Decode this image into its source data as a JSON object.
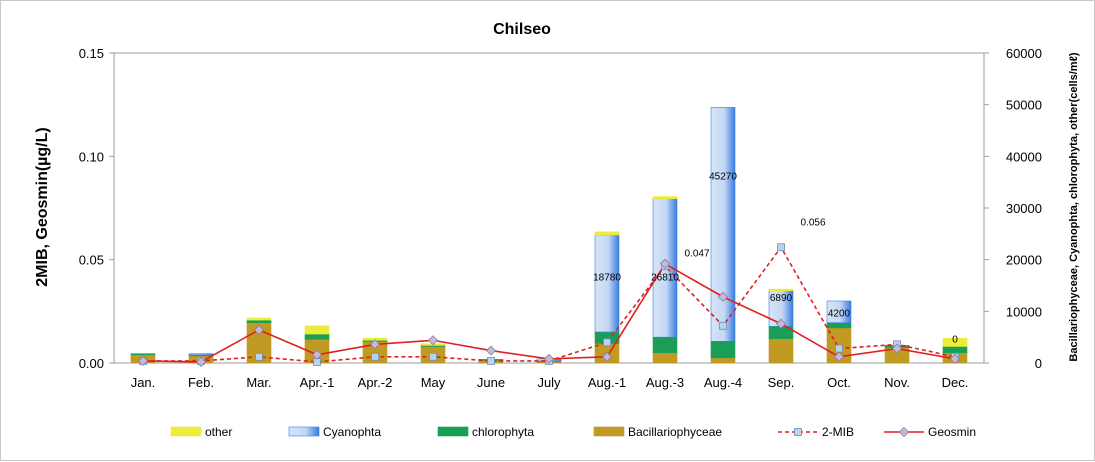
{
  "chart_data": {
    "type": "bar",
    "title": "Chilseo",
    "ylabel": "2MIB, Geosmin(µg/L)",
    "y2label": "Bacillariophyceae, Cyanophta, chlorophyta, other(cells/mℓ)",
    "ylim": [
      0,
      0.15
    ],
    "y2lim": [
      0,
      60000
    ],
    "yticks": [
      "0.00",
      "0.05",
      "0.10",
      "0.15"
    ],
    "y2ticks": [
      "0",
      "10000",
      "20000",
      "30000",
      "40000",
      "50000",
      "60000"
    ],
    "categories": [
      "Jan.",
      "Feb.",
      "Mar.",
      "Apr.-1",
      "Apr.-2",
      "May",
      "June",
      "July",
      "Aug.-1",
      "Aug.-3",
      "Aug.-4",
      "Sep.",
      "Oct.",
      "Nov.",
      "Dec."
    ],
    "stacked_series": [
      {
        "name": "Bacillariophyceae",
        "axis": "right",
        "color": "#c09a22",
        "values": [
          1600,
          1400,
          7800,
          4600,
          4200,
          3200,
          500,
          300,
          3800,
          2000,
          1000,
          4700,
          6800,
          3000,
          2000
        ]
      },
      {
        "name": "chlorophyta",
        "axis": "right",
        "color": "#1a9e57",
        "values": [
          200,
          200,
          500,
          1000,
          200,
          200,
          200,
          100,
          2200,
          3000,
          3200,
          2400,
          1000,
          400,
          1200
        ]
      },
      {
        "name": "Cyanophta",
        "axis": "right",
        "color": "#3a7de0",
        "values": [
          0,
          200,
          0,
          0,
          0,
          0,
          0,
          400,
          18780,
          26810,
          45270,
          6890,
          4200,
          0,
          0
        ]
      },
      {
        "name": "other",
        "axis": "right",
        "color": "#ecec3a",
        "values": [
          0,
          0,
          400,
          1600,
          400,
          300,
          0,
          0,
          600,
          400,
          0,
          300,
          0,
          0,
          1600
        ]
      }
    ],
    "line_series": [
      {
        "name": "2-MIB",
        "axis": "left",
        "style": "dashed",
        "color": "#e02020",
        "marker": "square",
        "values": [
          0.001,
          0.001,
          0.003,
          0.0005,
          0.003,
          0.003,
          0.001,
          0.001,
          0.01,
          0.047,
          0.018,
          0.056,
          0.007,
          0.009,
          0.003
        ]
      },
      {
        "name": "Geosmin",
        "axis": "left",
        "style": "solid",
        "color": "#e02020",
        "marker": "diamond",
        "values": [
          0.001,
          0.0005,
          0.016,
          0.004,
          0.009,
          0.011,
          0.006,
          0.002,
          0.003,
          0.048,
          0.032,
          0.019,
          0.003,
          0.007,
          0.002
        ]
      }
    ],
    "annotations": [
      {
        "text": "18780",
        "category": "Aug.-1",
        "y": 16000
      },
      {
        "text": "26810",
        "category": "Aug.-3",
        "y": 16000
      },
      {
        "text": "45270",
        "category": "Aug.-4",
        "y": 35500
      },
      {
        "text": "6890",
        "category": "Sep.",
        "y": 12000
      },
      {
        "text": "4200",
        "category": "Oct.",
        "y": 9000
      },
      {
        "text": "0.047",
        "category": "Aug.-3",
        "y": 0.0515,
        "axis": "left",
        "offset": "right"
      },
      {
        "text": "0.056",
        "category": "Sep.",
        "y": 0.0665,
        "axis": "left",
        "offset": "right"
      },
      {
        "text": "0",
        "category": "Dec.",
        "y": 4000
      }
    ],
    "legend": {
      "position": "bottom",
      "items": [
        {
          "label": "other",
          "kind": "bar",
          "color": "#ecec3a"
        },
        {
          "label": "Cyanophta",
          "kind": "bar",
          "color": "#3a7de0"
        },
        {
          "label": "chlorophyta",
          "kind": "bar",
          "color": "#1a9e57"
        },
        {
          "label": "Bacillariophyceae",
          "kind": "bar",
          "color": "#c09a22"
        },
        {
          "label": "2-MIB",
          "kind": "line-dashed",
          "color": "#e02020"
        },
        {
          "label": "Geosmin",
          "kind": "line-solid",
          "color": "#e02020"
        }
      ]
    },
    "grid": false
  }
}
